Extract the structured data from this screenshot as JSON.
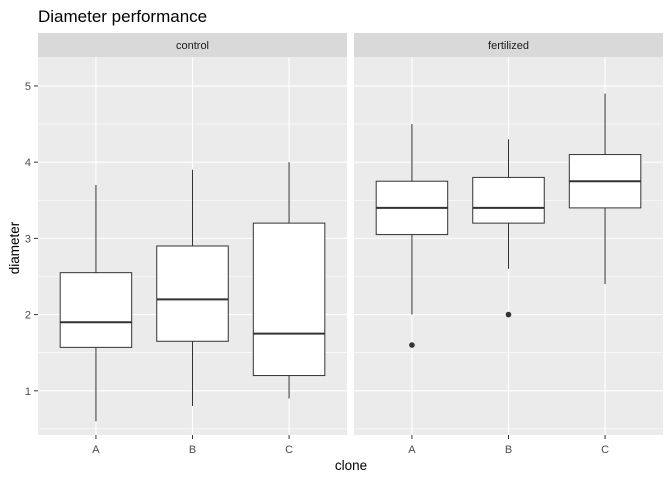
{
  "chart_data": {
    "type": "box",
    "title": "Diameter performance",
    "xlabel": "clone",
    "ylabel": "diameter",
    "ylim": [
      0.42,
      5.38
    ],
    "yticks": [
      1,
      2,
      3,
      4,
      5
    ],
    "categories": [
      "A",
      "B",
      "C"
    ],
    "grid": true,
    "colors": {
      "panel_bg": "#ebebeb",
      "strip_bg": "#d9d9d9",
      "grid_major": "#ffffff",
      "box_fill": "#ffffff",
      "box_line": "#333333"
    },
    "facets": [
      {
        "label": "control",
        "boxes": [
          {
            "category": "A",
            "min": 0.6,
            "q1": 1.57,
            "median": 1.9,
            "q3": 2.55,
            "max": 3.7,
            "outliers": []
          },
          {
            "category": "B",
            "min": 0.8,
            "q1": 1.65,
            "median": 2.2,
            "q3": 2.9,
            "max": 3.9,
            "outliers": []
          },
          {
            "category": "C",
            "min": 0.9,
            "q1": 1.2,
            "median": 1.75,
            "q3": 3.2,
            "max": 4.0,
            "outliers": []
          }
        ]
      },
      {
        "label": "fertilized",
        "boxes": [
          {
            "category": "A",
            "min": 2.0,
            "q1": 3.05,
            "median": 3.4,
            "q3": 3.75,
            "max": 4.5,
            "outliers": [
              1.6
            ]
          },
          {
            "category": "B",
            "min": 2.6,
            "q1": 3.2,
            "median": 3.4,
            "q3": 3.8,
            "max": 4.3,
            "outliers": [
              2.0
            ]
          },
          {
            "category": "C",
            "min": 2.4,
            "q1": 3.4,
            "median": 3.75,
            "q3": 4.1,
            "max": 4.9,
            "outliers": []
          }
        ]
      }
    ]
  }
}
